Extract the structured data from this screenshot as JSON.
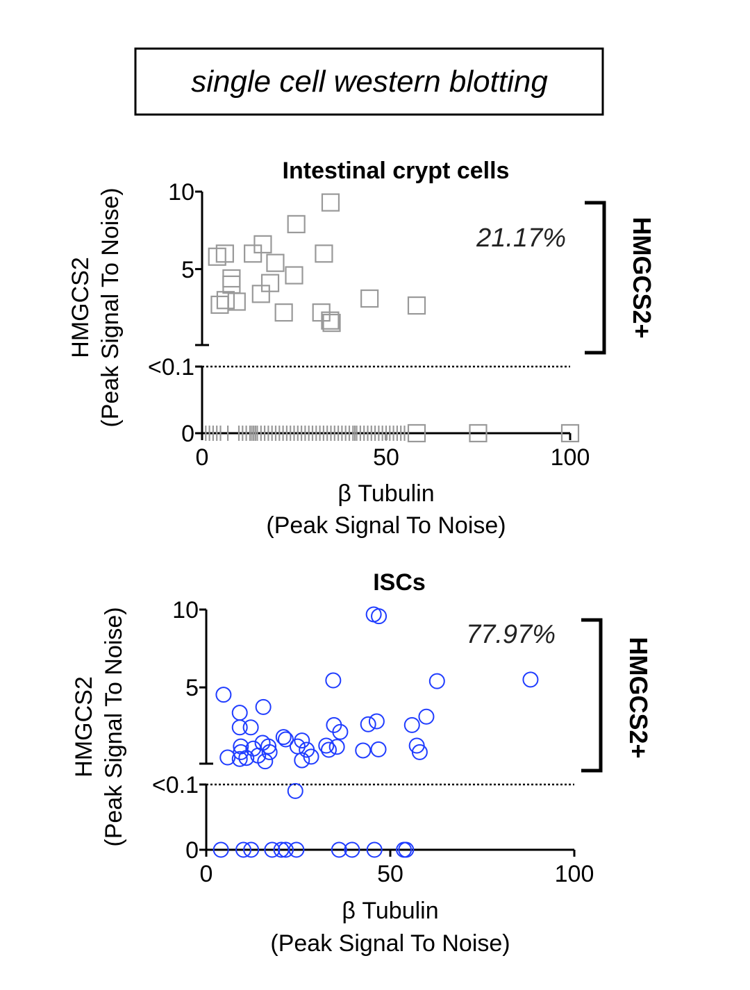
{
  "banner": "single cell western blotting",
  "chart_data": [
    {
      "type": "scatter",
      "title": "Intestinal crypt cells",
      "xlabel": "β Tubulin",
      "xlabel_sub": "(Peak Signal To Noise)",
      "ylabel": "HMGCS2",
      "ylabel_sub": "(Peak Signal To Noise)",
      "xlim": [
        0,
        100
      ],
      "x_ticks": [
        "0",
        "50",
        "100"
      ],
      "y_ticks": [
        "10",
        "5",
        "<0.1",
        "0"
      ],
      "ylim_upper": [
        0.1,
        10
      ],
      "marker": "square",
      "color": "#999999",
      "percent_positive": "21.17%",
      "bracket_label": "HMGCS2+",
      "points": [
        [
          34.9,
          9.3
        ],
        [
          25.6,
          7.9
        ],
        [
          16.5,
          6.6
        ],
        [
          13.8,
          6.0
        ],
        [
          6.2,
          6.0
        ],
        [
          4.1,
          5.8
        ],
        [
          33.1,
          6.0
        ],
        [
          19.9,
          5.4
        ],
        [
          25.0,
          4.6
        ],
        [
          8.0,
          4.4
        ],
        [
          8.0,
          4.0
        ],
        [
          18.5,
          4.1
        ],
        [
          16.0,
          3.4
        ],
        [
          45.5,
          3.1
        ],
        [
          58.3,
          2.65
        ],
        [
          6.4,
          3.0
        ],
        [
          4.8,
          2.7
        ],
        [
          9.4,
          2.9
        ],
        [
          22.2,
          2.2
        ],
        [
          32.4,
          2.2
        ],
        [
          34.8,
          1.68
        ],
        [
          35.2,
          1.53
        ]
      ],
      "zero_points_x": [
        1,
        2,
        3,
        4,
        5,
        7,
        10,
        11,
        12,
        13,
        13.5,
        14,
        14.5,
        15,
        16,
        17,
        18,
        19,
        20,
        21,
        22,
        23,
        24,
        25,
        26,
        27,
        28,
        29,
        30,
        31,
        32,
        33,
        34,
        35,
        36,
        37,
        38,
        39,
        40,
        41,
        41.5,
        42,
        43,
        44,
        45,
        46,
        47,
        48,
        49,
        50,
        51,
        52,
        53,
        54,
        55,
        58.3,
        75,
        100
      ]
    },
    {
      "type": "scatter",
      "title": "ISCs",
      "xlabel": "β Tubulin",
      "xlabel_sub": "(Peak Signal To Noise)",
      "ylabel": "HMGCS2",
      "ylabel_sub": "(Peak Signal To Noise)",
      "xlim": [
        0,
        100
      ],
      "x_ticks": [
        "0",
        "50",
        "100"
      ],
      "y_ticks": [
        "10",
        "5",
        "<0.1",
        "0"
      ],
      "ylim_upper": [
        0.1,
        10
      ],
      "marker": "circle",
      "color": "#1f3cff",
      "percent_positive": "77.97%",
      "bracket_label": "HMGCS2+",
      "points": [
        [
          45.5,
          9.69
        ],
        [
          46.9,
          9.57
        ],
        [
          34.5,
          5.45
        ],
        [
          62.7,
          5.4
        ],
        [
          88.1,
          5.5
        ],
        [
          4.7,
          4.53
        ],
        [
          9.1,
          3.37
        ],
        [
          15.5,
          3.74
        ],
        [
          9.1,
          2.43
        ],
        [
          12.1,
          2.43
        ],
        [
          34.7,
          2.58
        ],
        [
          36.4,
          2.14
        ],
        [
          44.0,
          2.63
        ],
        [
          46.3,
          2.82
        ],
        [
          55.9,
          2.58
        ],
        [
          59.8,
          3.12
        ],
        [
          21.0,
          1.81
        ],
        [
          21.6,
          1.66
        ],
        [
          26.0,
          1.59
        ],
        [
          24.8,
          1.21
        ],
        [
          27.3,
          0.99
        ],
        [
          28.5,
          0.55
        ],
        [
          26.0,
          0.32
        ],
        [
          32.6,
          1.26
        ],
        [
          35.5,
          1.18
        ],
        [
          33.3,
          0.99
        ],
        [
          42.6,
          0.95
        ],
        [
          46.8,
          1.02
        ],
        [
          57.2,
          1.26
        ],
        [
          58.0,
          0.84
        ],
        [
          5.8,
          0.5
        ],
        [
          9.4,
          1.21
        ],
        [
          9.4,
          0.84
        ],
        [
          9.1,
          0.4
        ],
        [
          10.9,
          0.47
        ],
        [
          12.8,
          1.07
        ],
        [
          15.3,
          1.44
        ],
        [
          16.9,
          1.21
        ],
        [
          17.2,
          0.84
        ],
        [
          16.0,
          0.25
        ],
        [
          14.1,
          0.62
        ]
      ],
      "below_threshold_points": [
        [
          24.2,
          0.09
        ]
      ],
      "zero_points_x": [
        4.0,
        10.1,
        12.2,
        17.9,
        20.4,
        21.6,
        24.5,
        36.1,
        39.6,
        45.7,
        53.7,
        54.3
      ]
    }
  ]
}
